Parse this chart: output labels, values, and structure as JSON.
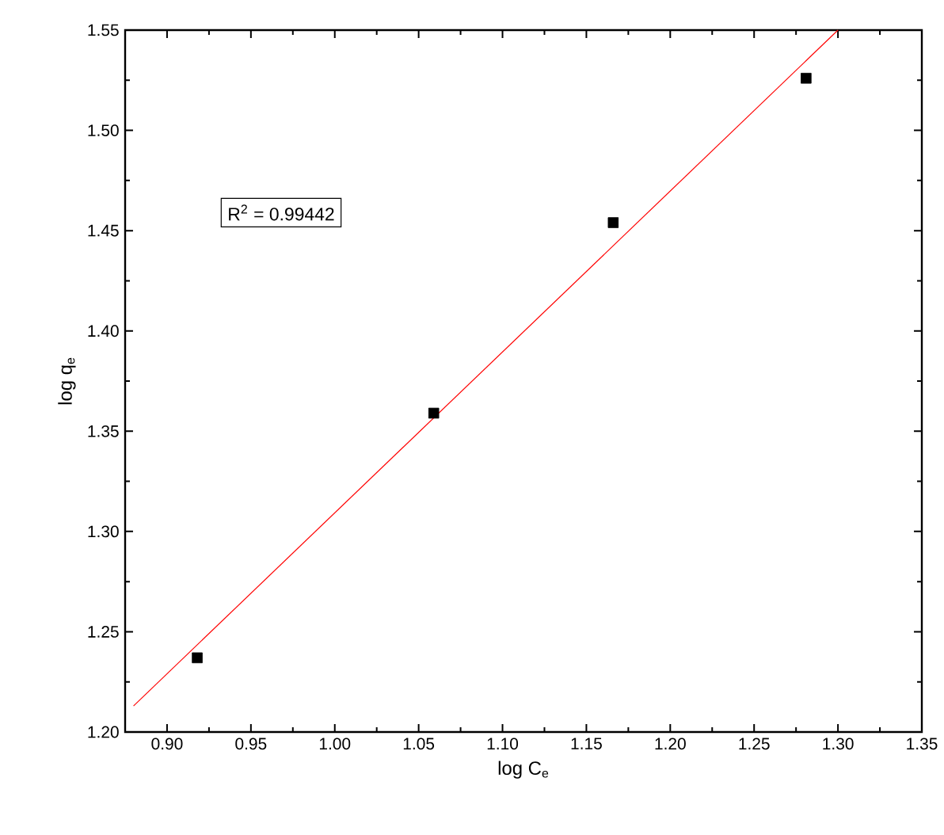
{
  "chart_data": {
    "type": "scatter",
    "xlabel": "log C$_{e}$",
    "ylabel": "log q$_{e}$",
    "annotations": [
      "R$^{2}$ = 0.99442"
    ],
    "xlim": [
      0.875,
      1.35
    ],
    "ylim": [
      1.2,
      1.55
    ],
    "xticks": [
      {
        "value": 0.9,
        "label": "0.90"
      },
      {
        "value": 0.95,
        "label": "0.95"
      },
      {
        "value": 1.0,
        "label": "1.00"
      },
      {
        "value": 1.05,
        "label": "1.05"
      },
      {
        "value": 1.1,
        "label": "1.10"
      },
      {
        "value": 1.15,
        "label": "1.15"
      },
      {
        "value": 1.2,
        "label": "1.20"
      },
      {
        "value": 1.25,
        "label": "1.25"
      },
      {
        "value": 1.3,
        "label": "1.30"
      },
      {
        "value": 1.35,
        "label": "1.35"
      }
    ],
    "yticks": [
      {
        "value": 1.2,
        "label": "1.20"
      },
      {
        "value": 1.25,
        "label": "1.25"
      },
      {
        "value": 1.3,
        "label": "1.30"
      },
      {
        "value": 1.35,
        "label": "1.35"
      },
      {
        "value": 1.4,
        "label": "1.40"
      },
      {
        "value": 1.45,
        "label": "1.45"
      },
      {
        "value": 1.5,
        "label": "1.50"
      },
      {
        "value": 1.55,
        "label": "1.55"
      }
    ],
    "series": [
      {
        "color": "#000000",
        "marker": "square",
        "x": [
          0.918,
          1.059,
          1.166,
          1.281
        ],
        "values": [
          1.237,
          1.359,
          1.454,
          1.526
        ]
      },
      {
        "type": "line",
        "color": "#ff0000",
        "marker": "none",
        "x": [
          0.88,
          1.3
        ],
        "values": [
          1.213,
          1.55
        ]
      }
    ]
  }
}
